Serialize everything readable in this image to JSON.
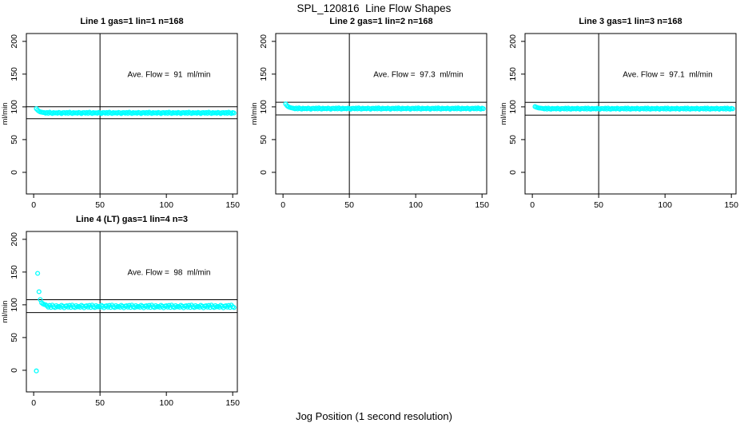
{
  "chart_data": {
    "type": "scatter",
    "title": "SPL_120816  Line Flow Shapes",
    "xlabel": "Jog Position (1 second resolution)",
    "ylabel": "ml/min",
    "point_color": "#00FFFF",
    "axis_color": "#000000",
    "background": "#FFFFFF",
    "grid": false,
    "legend": "none",
    "xlim": [
      -5.5,
      153.5
    ],
    "ylim": [
      -33,
      212
    ],
    "x_ticks": [
      0,
      50,
      100,
      150
    ],
    "y_ticks": [
      0,
      50,
      100,
      150,
      200
    ],
    "vline_x": 50,
    "annotation_x": 102,
    "annotation_y": 150,
    "panels": [
      {
        "title": "Line 1 gas=1 lin=1 n=168",
        "annotation": "Ave. Flow =  91  ml/min",
        "ave_flow": 91,
        "n": 168,
        "hlines": [
          100.1,
          81.9
        ],
        "x_start": 2,
        "x_step": 1,
        "y": [
          97.2,
          95,
          93.3,
          92.3,
          91.8,
          91.5,
          91.2,
          90.4,
          91.5,
          90.1,
          91.8,
          90.7,
          89.9,
          91.3,
          90.6,
          91,
          90.2,
          91.6,
          90.8,
          89.8,
          91.1,
          91.2,
          90.4,
          91.5,
          90.1,
          91.8,
          90.7,
          89.9,
          91.3,
          90.6,
          91,
          90.2,
          91.6,
          90.8,
          89.8,
          91.1,
          91.2,
          90.4,
          91.5,
          90.1,
          91.8,
          90.7,
          89.9,
          91.3,
          90.6,
          91,
          90.2,
          91.6,
          90.8,
          89.8,
          91.1,
          91.2,
          90.4,
          91.5,
          90.1,
          91.8,
          90.7,
          89.9,
          91.3,
          90.6,
          91,
          90.2,
          91.6,
          90.8,
          89.8,
          91.1,
          91.2,
          90.4,
          91.5,
          90.1,
          91.8,
          90.7,
          89.9,
          91.3,
          90.6,
          91,
          90.2,
          91.6,
          90.8,
          89.8,
          91.1,
          91.2,
          90.4,
          91.5,
          90.1,
          91.8,
          90.7,
          89.9,
          91.3,
          90.6,
          91,
          90.2,
          91.6,
          90.8,
          89.8,
          91.1,
          91.2,
          90.4,
          91.5,
          90.1,
          91.8,
          90.7,
          89.9,
          91.3,
          90.6,
          91,
          90.2,
          91.6,
          90.8,
          89.8,
          91.1,
          91.2,
          90.4,
          91.5,
          90.1,
          91.8,
          90.7,
          89.9,
          91.3,
          90.6,
          91,
          90.2,
          91.6,
          90.8,
          89.8,
          91.1,
          91.2,
          90.4,
          91.5,
          90.1,
          91.8,
          90.7,
          89.9,
          91.3,
          90.6,
          91,
          90.2,
          91.6,
          90.8,
          89.8,
          91.1,
          91.2,
          90.4,
          91.5,
          90.1,
          91.8,
          90.7,
          89.9,
          91.3,
          90.6
        ]
      },
      {
        "title": "Line 2 gas=1 lin=2 n=168",
        "annotation": "Ave. Flow =  97.3  ml/min",
        "ave_flow": 97.3,
        "n": 168,
        "hlines": [
          107.0,
          87.6
        ],
        "x_start": 2,
        "x_step": 1,
        "y": [
          104.5,
          101.8,
          100.2,
          99.2,
          98.6,
          98.1,
          97.8,
          97,
          98.1,
          96.8,
          98.4,
          97.3,
          96.6,
          97.9,
          97.2,
          97.6,
          96.9,
          98.2,
          97.4,
          96.5,
          97.7,
          97.8,
          97,
          98.1,
          96.8,
          98.4,
          97.3,
          96.6,
          97.9,
          97.2,
          97.6,
          96.9,
          98.2,
          97.4,
          96.5,
          97.7,
          97.8,
          97,
          98.1,
          96.8,
          98.4,
          97.3,
          96.6,
          97.9,
          97.2,
          97.6,
          96.9,
          98.2,
          97.4,
          96.5,
          97.7,
          97.8,
          97,
          98.1,
          96.8,
          98.4,
          97.3,
          96.6,
          97.9,
          97.2,
          97.6,
          96.9,
          98.2,
          97.4,
          96.5,
          97.7,
          97.8,
          97,
          98.1,
          96.8,
          98.4,
          97.3,
          96.6,
          97.9,
          97.2,
          97.6,
          96.9,
          98.2,
          97.4,
          96.5,
          97.7,
          97.8,
          97,
          98.1,
          96.8,
          98.4,
          97.3,
          96.6,
          97.9,
          97.2,
          97.6,
          96.9,
          98.2,
          97.4,
          96.5,
          97.7,
          97.8,
          97,
          98.1,
          96.8,
          98.4,
          97.3,
          96.6,
          97.9,
          97.2,
          97.6,
          96.9,
          98.2,
          97.4,
          96.5,
          97.7,
          97.8,
          97,
          98.1,
          96.8,
          98.4,
          97.3,
          96.6,
          97.9,
          97.2,
          97.6,
          96.9,
          98.2,
          97.4,
          96.5,
          97.7,
          97.8,
          97,
          98.1,
          96.8,
          98.4,
          97.3,
          96.6,
          97.9,
          97.2,
          97.6,
          96.9,
          98.2,
          97.4,
          96.5,
          97.7,
          97.8,
          97,
          98.1,
          96.8,
          98.4,
          97.3,
          96.6,
          97.9,
          97.2
        ]
      },
      {
        "title": "Line 3 gas=1 lin=3 n=168",
        "annotation": "Ave. Flow =  97.1  ml/min",
        "ave_flow": 97.1,
        "n": 168,
        "hlines": [
          106.8,
          87.4
        ],
        "x_start": 2,
        "x_step": 1,
        "y": [
          100.4,
          99.5,
          98.8,
          98.3,
          98,
          97.8,
          97.6,
          96.8,
          97.9,
          96.6,
          98.2,
          97.1,
          96.4,
          97.7,
          97,
          97.4,
          96.7,
          98,
          97.2,
          96.3,
          97.5,
          97.6,
          96.8,
          97.9,
          96.6,
          98.2,
          97.1,
          96.4,
          97.7,
          97,
          97.4,
          96.7,
          98,
          97.2,
          96.3,
          97.5,
          97.6,
          96.8,
          97.9,
          96.6,
          98.2,
          97.1,
          96.4,
          97.7,
          97,
          97.4,
          96.7,
          98,
          97.2,
          96.3,
          97.5,
          97.6,
          96.8,
          97.9,
          96.6,
          98.2,
          97.1,
          96.4,
          97.7,
          97,
          97.4,
          96.7,
          98,
          97.2,
          96.3,
          97.5,
          97.6,
          96.8,
          97.9,
          96.6,
          98.2,
          97.1,
          96.4,
          97.7,
          97,
          97.4,
          96.7,
          98,
          97.2,
          96.3,
          97.5,
          97.6,
          96.8,
          97.9,
          96.6,
          98.2,
          97.1,
          96.4,
          97.7,
          97,
          97.4,
          96.7,
          98,
          97.2,
          96.3,
          97.5,
          97.6,
          96.8,
          97.9,
          96.6,
          98.2,
          97.1,
          96.4,
          97.7,
          97,
          97.4,
          96.7,
          98,
          97.2,
          96.3,
          97.5,
          97.6,
          96.8,
          97.9,
          96.6,
          98.2,
          97.1,
          96.4,
          97.7,
          97,
          97.4,
          96.7,
          98,
          97.2,
          96.3,
          97.5,
          97.6,
          96.8,
          97.9,
          96.6,
          98.2,
          97.1,
          96.4,
          97.7,
          97,
          97.4,
          96.7,
          98,
          97.2,
          96.3,
          97.5,
          97.6,
          96.8,
          97.9,
          96.6,
          98.2,
          97.1,
          96.4,
          97.7,
          97
        ]
      },
      {
        "title": "Line 4 (LT) gas=1 lin=4 n=3",
        "annotation": "Ave. Flow =  98  ml/min",
        "ave_flow": 98,
        "n": 3,
        "hlines": [
          107.8,
          88.2
        ],
        "x_start": 2,
        "x_step": 1,
        "y": [
          -1,
          148,
          120,
          108,
          103,
          101.5,
          100.5,
          100,
          98.5,
          96.5,
          99,
          96,
          99.5,
          97,
          95.8,
          98.8,
          96.8,
          97.5,
          96.2,
          99.2,
          97.8,
          95.5,
          98,
          98.5,
          96.5,
          99,
          96,
          99.5,
          97,
          95.8,
          98.8,
          96.8,
          97.5,
          96.2,
          99.2,
          97.8,
          95.5,
          98,
          98.5,
          96.5,
          99,
          96,
          99.5,
          97,
          95.8,
          98.8,
          96.8,
          97.5,
          96.2,
          99.2,
          97.8,
          95.5,
          98,
          98.5,
          96.5,
          99,
          96,
          99.5,
          97,
          95.8,
          98.8,
          96.8,
          97.5,
          96.2,
          99.2,
          97.8,
          95.5,
          98,
          98.5,
          96.5,
          99,
          96,
          99.5,
          97,
          95.8,
          98.8,
          96.8,
          97.5,
          96.2,
          99.2,
          97.8,
          95.5,
          98,
          98.5,
          96.5,
          99,
          96,
          99.5,
          97,
          95.8,
          98.8,
          96.8,
          97.5,
          96.2,
          99.2,
          97.8,
          95.5,
          98,
          98.5,
          96.5,
          99,
          96,
          99.5,
          97,
          95.8,
          98.8,
          96.8,
          97.5,
          96.2,
          99.2,
          97.8,
          95.5,
          98,
          98.5,
          96.5,
          99,
          96,
          99.5,
          97,
          95.8,
          98.8,
          96.8,
          97.5,
          96.2,
          99.2,
          97.8,
          95.5,
          98,
          98.5,
          96.5,
          99,
          96,
          99.5,
          97,
          95.8,
          98.8,
          96.8,
          97.5,
          96.2,
          99.2,
          97.8,
          95.5,
          98,
          98.5,
          96.5,
          99,
          96,
          99.5,
          97,
          95.8
        ]
      }
    ]
  }
}
